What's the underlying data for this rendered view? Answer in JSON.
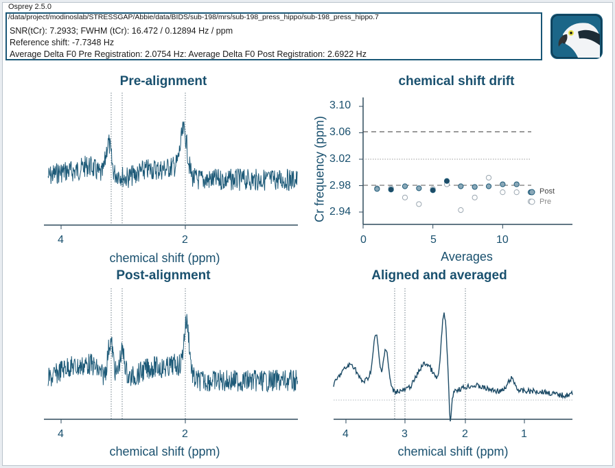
{
  "window_title": "Osprey 2.5.0",
  "info": {
    "file_path": "/data/project/modinoslab/STRESSGAP/Abbie/data/BIDS/sub-198/mrs/sub-198_press_hippo/sub-198_press_hippo.7",
    "snr_line": "SNR(tCr): 7.2933; FWHM (tCr): 16.472 / 0.12894 Hz / ppm",
    "ref_shift_line": "Reference shift: -7.7348 Hz",
    "delta_line": "Average Delta F0 Pre Registration: 2.0754 Hz: Average Delta F0 Post Registration: 2.6922 Hz"
  },
  "logo": "osprey-bird-logo",
  "colors": {
    "accent": "#19506e",
    "post": "#1d5a78",
    "pre": "#9aa6b0"
  },
  "panels": {
    "pre": {
      "title": "Pre-alignment",
      "xlabel": "chemical shift (ppm)",
      "ticks": [
        "4",
        "2"
      ]
    },
    "drift": {
      "title": "chemical shift drift",
      "xlabel": "Averages",
      "ylabel": "Cr frequency (ppm)",
      "yticks": [
        "3.10",
        "3.06",
        "3.02",
        "2.98",
        "2.94"
      ],
      "xticks": [
        "0",
        "5",
        "10"
      ],
      "legend_post": "Post",
      "legend_pre": "Pre"
    },
    "post": {
      "title": "Post-alignment",
      "xlabel": "chemical shift (ppm)",
      "ticks": [
        "4",
        "2"
      ]
    },
    "avg": {
      "title": "Aligned and averaged",
      "xlabel": "chemical shift (ppm)",
      "ticks": [
        "4",
        "3",
        "2",
        "1"
      ]
    }
  },
  "chart_data": [
    {
      "type": "line",
      "title": "Pre-alignment",
      "xlabel": "chemical shift (ppm)",
      "xlim": [
        4.4,
        0.7
      ],
      "reference_lines_ppm": [
        3.21,
        3.03,
        2.01
      ],
      "peaks_ppm": [
        3.21,
        3.03,
        2.01
      ]
    },
    {
      "type": "scatter",
      "title": "chemical shift drift",
      "xlabel": "Averages",
      "ylabel": "Cr frequency (ppm)",
      "xlim": [
        0,
        15
      ],
      "ylim": [
        2.92,
        3.12
      ],
      "hlines": [
        3.06,
        2.98
      ],
      "series": [
        {
          "name": "Post",
          "x": [
            1,
            2,
            3,
            4,
            5,
            6,
            7,
            8,
            9,
            10,
            11,
            12
          ],
          "y": [
            2.975,
            2.974,
            2.979,
            2.976,
            2.973,
            2.987,
            2.979,
            2.978,
            2.979,
            2.982,
            2.982,
            2.97
          ]
        },
        {
          "name": "Pre",
          "x": [
            1,
            2,
            3,
            4,
            5,
            6,
            7,
            8,
            9,
            10,
            11,
            12
          ],
          "y": [
            2.976,
            2.976,
            2.962,
            2.952,
            2.975,
            2.982,
            2.943,
            2.962,
            2.992,
            2.97,
            2.97,
            2.956
          ]
        }
      ]
    },
    {
      "type": "line",
      "title": "Post-alignment",
      "xlabel": "chemical shift (ppm)",
      "xlim": [
        4.4,
        0.7
      ],
      "reference_lines_ppm": [
        3.21,
        3.03,
        2.01
      ],
      "peaks_ppm": [
        3.21,
        3.03,
        2.01
      ]
    },
    {
      "type": "line",
      "title": "Aligned and averaged",
      "xlabel": "chemical shift (ppm)",
      "xlim": [
        4.2,
        0.8
      ],
      "reference_lines_ppm": [
        3.21,
        3.03,
        2.01
      ],
      "peaks_ppm": [
        3.75,
        3.6,
        3.21,
        3.03,
        2.01
      ]
    }
  ]
}
